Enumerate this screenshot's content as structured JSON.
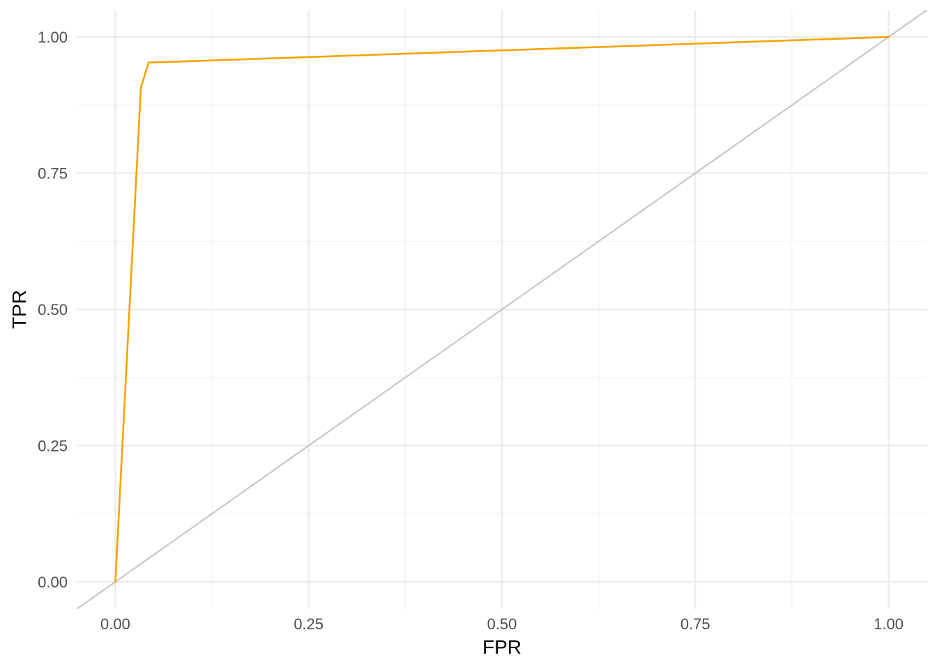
{
  "chart_data": {
    "type": "line",
    "title": "",
    "xlabel": "FPR",
    "ylabel": "TPR",
    "xlim": [
      -0.05,
      1.05
    ],
    "ylim": [
      -0.05,
      1.05
    ],
    "x_ticks": [
      0,
      0.25,
      0.5,
      0.75,
      1
    ],
    "x_tick_labels": [
      "0.00",
      "0.25",
      "0.50",
      "0.75",
      "1.00"
    ],
    "y_ticks": [
      0,
      0.25,
      0.5,
      0.75,
      1
    ],
    "y_tick_labels": [
      "0.00",
      "0.25",
      "0.50",
      "0.75",
      "1.00"
    ],
    "grid": true,
    "legend": "none",
    "series": [
      {
        "color": "#f5a300",
        "points": [
          {
            "x": 0.0,
            "y": 0.0
          },
          {
            "x": 0.033,
            "y": 0.907
          },
          {
            "x": 0.043,
            "y": 0.953
          },
          {
            "x": 1.0,
            "y": 1.0
          }
        ]
      }
    ],
    "reference_line": {
      "color": "#c8c8c8",
      "slope": 1,
      "intercept": 0
    }
  }
}
